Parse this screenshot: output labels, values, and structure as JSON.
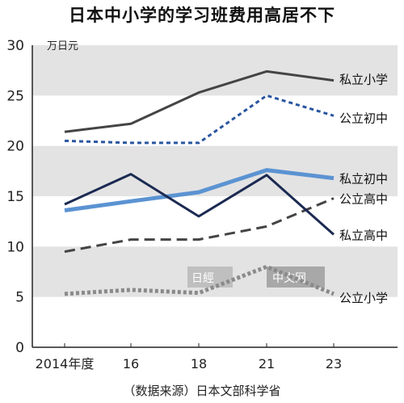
{
  "title": "日本中小学的学习班费用高居不下",
  "source": "（数据来源）日本文部科学省",
  "watermark": {
    "logo_text": "日經",
    "site_text": "中文网"
  },
  "chart_data": {
    "type": "line",
    "unit": "万日元",
    "ylim": [
      0,
      30
    ],
    "yticks": [
      0,
      5,
      10,
      15,
      20,
      25,
      30
    ],
    "grid": "alternating horizontal bands",
    "categories": [
      "2014年度",
      "16",
      "18",
      "21",
      "23"
    ],
    "series": [
      {
        "name": "私立小学",
        "values": [
          21.4,
          22.2,
          25.3,
          27.4,
          26.5
        ],
        "color": "#444444",
        "style": "solid"
      },
      {
        "name": "公立初中",
        "values": [
          20.5,
          20.3,
          20.3,
          25.0,
          23.0
        ],
        "color": "#2a56a0",
        "style": "dotted"
      },
      {
        "name": "私立初中",
        "values": [
          13.6,
          14.5,
          15.4,
          17.6,
          16.8
        ],
        "color": "#5b93d2",
        "style": "solid-thick"
      },
      {
        "name": "公立高中",
        "values": [
          9.5,
          10.7,
          10.7,
          12.0,
          14.8
        ],
        "color": "#444444",
        "style": "dashed"
      },
      {
        "name": "私立高中",
        "values": [
          14.2,
          17.2,
          13.0,
          17.1,
          11.2
        ],
        "color": "#1b2a52",
        "style": "solid"
      },
      {
        "name": "公立小学",
        "values": [
          5.3,
          5.7,
          5.4,
          8.0,
          5.3
        ],
        "color": "#8a8a8a",
        "style": "dotted-thick"
      }
    ]
  }
}
